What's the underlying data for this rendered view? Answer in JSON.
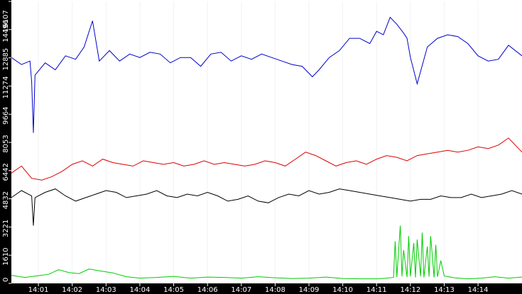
{
  "chart_data": {
    "type": "line",
    "title": "",
    "xlabel": "",
    "ylabel": "",
    "background": "#ffffff",
    "axis_bar_color": "#000000",
    "tick_label_color": "#ffffff",
    "y_ticks": [
      {
        "label": "0",
        "value": 0
      },
      {
        "label": "1610",
        "value": 1610
      },
      {
        "label": "3221",
        "value": 3221
      },
      {
        "label": "4832",
        "value": 4832
      },
      {
        "label": "6442",
        "value": 6442
      },
      {
        "label": "8053",
        "value": 8053
      },
      {
        "label": "9664",
        "value": 9664
      },
      {
        "label": "11274",
        "value": 11274
      },
      {
        "label": "12885",
        "value": 12885
      },
      {
        "label": "14496",
        "value": 14496
      },
      {
        "label": "16107",
        "value": 16107
      }
    ],
    "ylim": [
      0,
      16107
    ],
    "x_ticks": [
      "14:01",
      "14:02",
      "14:03",
      "14:04",
      "14:05",
      "14:06",
      "14:07",
      "14:08",
      "14:09",
      "14:10",
      "14:11",
      "14:12",
      "14:13",
      "14:14"
    ],
    "x_tick_minutes": [
      1,
      2,
      3,
      4,
      5,
      6,
      7,
      8,
      9,
      10,
      11,
      12,
      13,
      14
    ],
    "x_unit": "minutes after 14:00",
    "xlim": [
      0.2,
      15.3
    ],
    "series": [
      {
        "color": "#0000cc",
        "x": [
          0.2,
          0.5,
          0.75,
          0.8,
          0.85,
          0.9,
          1.2,
          1.5,
          1.8,
          2.1,
          2.35,
          2.6,
          2.8,
          3.1,
          3.4,
          3.7,
          4.0,
          4.3,
          4.6,
          4.9,
          5.2,
          5.5,
          5.8,
          6.1,
          6.4,
          6.7,
          7.0,
          7.3,
          7.6,
          7.9,
          8.2,
          8.5,
          8.8,
          9.1,
          9.3,
          9.6,
          9.9,
          10.2,
          10.5,
          10.8,
          11.0,
          11.2,
          11.4,
          11.6,
          11.8,
          11.9,
          12.0,
          12.2,
          12.5,
          12.8,
          13.1,
          13.4,
          13.7,
          14.0,
          14.3,
          14.6,
          14.9,
          15.3
        ],
        "values": [
          12900,
          12500,
          12700,
          11500,
          8600,
          11900,
          12600,
          12200,
          13000,
          12800,
          13500,
          15000,
          12700,
          13300,
          12700,
          13100,
          12900,
          13200,
          13100,
          12600,
          12900,
          12900,
          12400,
          13100,
          13200,
          12700,
          13000,
          12800,
          13100,
          12900,
          12700,
          12500,
          12400,
          11800,
          12200,
          12900,
          13300,
          14000,
          14000,
          13700,
          14400,
          14200,
          15200,
          14800,
          14300,
          14000,
          12900,
          11400,
          13500,
          14000,
          14200,
          14100,
          13700,
          13000,
          12700,
          12800,
          13600,
          13000
        ]
      },
      {
        "color": "#dd0000",
        "x": [
          0.2,
          0.5,
          0.8,
          1.1,
          1.4,
          1.7,
          2.0,
          2.3,
          2.6,
          2.9,
          3.2,
          3.5,
          3.8,
          4.1,
          4.4,
          4.7,
          5.0,
          5.3,
          5.6,
          5.9,
          6.2,
          6.5,
          6.8,
          7.1,
          7.4,
          7.7,
          8.0,
          8.3,
          8.6,
          8.9,
          9.2,
          9.5,
          9.8,
          10.1,
          10.4,
          10.7,
          11.0,
          11.3,
          11.6,
          11.9,
          12.2,
          12.5,
          12.8,
          13.1,
          13.4,
          13.7,
          14.0,
          14.3,
          14.6,
          14.9,
          15.3
        ],
        "values": [
          6300,
          6700,
          6000,
          5900,
          6100,
          6400,
          6800,
          7000,
          6700,
          7100,
          6900,
          6800,
          6700,
          7000,
          6900,
          6800,
          6900,
          6700,
          6800,
          7000,
          6800,
          6900,
          6800,
          6700,
          6800,
          7000,
          6900,
          6700,
          7100,
          7500,
          7300,
          7000,
          6700,
          6900,
          7000,
          6800,
          7100,
          7300,
          7200,
          7000,
          7300,
          7400,
          7500,
          7600,
          7500,
          7600,
          7800,
          7700,
          7900,
          8300,
          7500
        ]
      },
      {
        "color": "#000000",
        "x": [
          0.2,
          0.5,
          0.8,
          0.85,
          0.9,
          1.2,
          1.5,
          1.8,
          2.1,
          2.4,
          2.7,
          3.0,
          3.3,
          3.6,
          3.9,
          4.2,
          4.5,
          4.8,
          5.1,
          5.4,
          5.7,
          6.0,
          6.3,
          6.6,
          6.9,
          7.2,
          7.5,
          7.8,
          8.1,
          8.4,
          8.7,
          9.0,
          9.3,
          9.6,
          9.9,
          10.2,
          10.5,
          10.8,
          11.1,
          11.4,
          11.7,
          12.0,
          12.3,
          12.6,
          12.9,
          13.2,
          13.5,
          13.8,
          14.1,
          14.4,
          14.7,
          15.0,
          15.3
        ],
        "values": [
          4900,
          5300,
          5000,
          3300,
          4900,
          5200,
          5400,
          5000,
          4700,
          4900,
          5100,
          5300,
          5200,
          4900,
          5000,
          5100,
          5300,
          5000,
          4900,
          5100,
          5000,
          5200,
          5000,
          4700,
          4800,
          5000,
          4700,
          4600,
          4900,
          5100,
          5000,
          5300,
          5100,
          5200,
          5400,
          5300,
          5200,
          5100,
          5000,
          4900,
          4800,
          4700,
          4800,
          4800,
          5000,
          4900,
          4900,
          5100,
          4900,
          5000,
          5100,
          5300,
          5100
        ]
      },
      {
        "color": "#00cc00",
        "x": [
          0.2,
          0.6,
          1.0,
          1.3,
          1.6,
          1.9,
          2.2,
          2.5,
          2.8,
          3.2,
          3.6,
          4.0,
          4.5,
          5.0,
          5.5,
          6.0,
          6.5,
          7.0,
          7.5,
          8.0,
          8.5,
          9.0,
          9.5,
          10.0,
          10.5,
          11.0,
          11.3,
          11.5,
          11.55,
          11.6,
          11.7,
          11.75,
          11.8,
          11.9,
          11.95,
          12.0,
          12.1,
          12.15,
          12.2,
          12.3,
          12.35,
          12.4,
          12.5,
          12.55,
          12.6,
          12.7,
          12.75,
          12.8,
          12.9,
          13.0,
          13.3,
          13.7,
          14.1,
          14.5,
          14.9,
          15.3
        ],
        "values": [
          460,
          340,
          440,
          520,
          780,
          620,
          560,
          820,
          720,
          600,
          380,
          300,
          340,
          400,
          300,
          360,
          340,
          300,
          380,
          320,
          280,
          300,
          360,
          280,
          260,
          260,
          300,
          340,
          2400,
          360,
          3300,
          400,
          1900,
          360,
          2700,
          400,
          2300,
          340,
          2500,
          400,
          2900,
          340,
          2100,
          380,
          2700,
          340,
          2200,
          380,
          1300,
          420,
          320,
          260,
          300,
          380,
          300,
          360
        ]
      }
    ]
  }
}
